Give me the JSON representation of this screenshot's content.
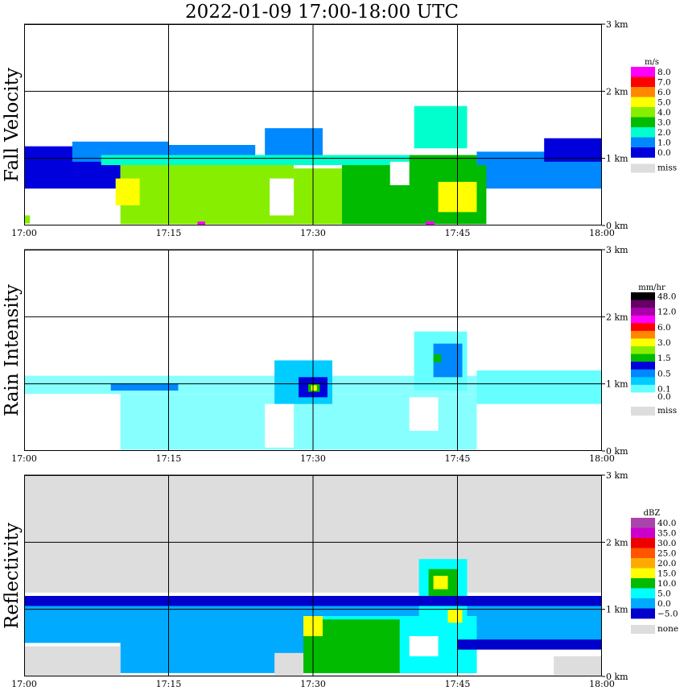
{
  "title": "2022-01-09   17:00-18:00 UTC",
  "chart_data": [
    {
      "type": "heatmap",
      "name": "fall-velocity",
      "title": "Fall Velocity",
      "x_ticks": [
        "17:00",
        "17:15",
        "17:30",
        "17:45",
        "18:00"
      ],
      "y_ticks": [
        "0 km",
        "1 km",
        "2 km",
        "3 km"
      ],
      "xlim": [
        0,
        60
      ],
      "ylim": [
        0,
        3.0
      ],
      "legend_unit": "m/s",
      "legend": [
        {
          "label": "8.0",
          "color": "#ff00ff"
        },
        {
          "label": "7.0",
          "color": "#ff0000"
        },
        {
          "label": "6.0",
          "color": "#ff8800"
        },
        {
          "label": "5.0",
          "color": "#ffff00"
        },
        {
          "label": "4.0",
          "color": "#88ee00"
        },
        {
          "label": "3.0",
          "color": "#00bb00"
        },
        {
          "label": "2.0",
          "color": "#00ffcc"
        },
        {
          "label": "1.0",
          "color": "#0088ff"
        },
        {
          "label": "0.0",
          "color": "#0000dd"
        }
      ],
      "missing": {
        "label": "miss",
        "color": "#dddddd"
      },
      "regions": [
        {
          "color": "#0000dd",
          "x0": 0,
          "x1": 10,
          "y0": 0.55,
          "y1": 1.18
        },
        {
          "color": "#0088ff",
          "x0": 5,
          "x1": 15,
          "y0": 0.95,
          "y1": 1.25
        },
        {
          "color": "#0088ff",
          "x0": 12,
          "x1": 24,
          "y0": 0.9,
          "y1": 1.2
        },
        {
          "color": "#0088ff",
          "x0": 25,
          "x1": 31,
          "y0": 1.0,
          "y1": 1.45
        },
        {
          "color": "#0088ff",
          "x0": 47,
          "x1": 60,
          "y0": 0.55,
          "y1": 1.1
        },
        {
          "color": "#0000dd",
          "x0": 54,
          "x1": 60,
          "y0": 0.95,
          "y1": 1.3
        },
        {
          "color": "#00ffcc",
          "x0": 8,
          "x1": 40,
          "y0": 0.9,
          "y1": 1.05
        },
        {
          "color": "#00ffcc",
          "x0": 40.5,
          "x1": 46,
          "y0": 1.15,
          "y1": 1.78
        },
        {
          "color": "#88ee00",
          "x0": 10,
          "x1": 28,
          "y0": 0.02,
          "y1": 0.9
        },
        {
          "color": "#88ee00",
          "x0": 28,
          "x1": 33,
          "y0": 0.02,
          "y1": 0.85
        },
        {
          "color": "#00bb00",
          "x0": 33,
          "x1": 48,
          "y0": 0.02,
          "y1": 0.9
        },
        {
          "color": "#00bb00",
          "x0": 40,
          "x1": 47,
          "y0": 0.8,
          "y1": 1.05
        },
        {
          "color": "#ffff00",
          "x0": 9.5,
          "x1": 12,
          "y0": 0.3,
          "y1": 0.7
        },
        {
          "color": "#ffff00",
          "x0": 43,
          "x1": 47,
          "y0": 0.2,
          "y1": 0.65
        },
        {
          "color": "#ffffff",
          "x0": 25.5,
          "x1": 28,
          "y0": 0.15,
          "y1": 0.7
        },
        {
          "color": "#ffffff",
          "x0": 38,
          "x1": 40,
          "y0": 0.6,
          "y1": 0.95
        },
        {
          "color": "#ff00ff",
          "x0": 18,
          "x1": 18.8,
          "y0": 0.0,
          "y1": 0.06
        },
        {
          "color": "#ff00ff",
          "x0": 41.7,
          "x1": 42.6,
          "y0": 0.0,
          "y1": 0.06
        },
        {
          "color": "#88ee00",
          "x0": 0,
          "x1": 0.6,
          "y0": 0.03,
          "y1": 0.15
        }
      ]
    },
    {
      "type": "heatmap",
      "name": "rain-intensity",
      "title": "Rain Intensity",
      "x_ticks": [
        "17:00",
        "17:15",
        "17:30",
        "17:45",
        "18:00"
      ],
      "y_ticks": [
        "0 km",
        "1 km",
        "2 km",
        "3 km"
      ],
      "xlim": [
        0,
        60
      ],
      "ylim": [
        0,
        3.0
      ],
      "legend_unit": "mm/hr",
      "legend": [
        {
          "label": "48.0",
          "color": "#000000"
        },
        {
          "label": "",
          "color": "#660066"
        },
        {
          "label": "12.0",
          "color": "#aa00aa"
        },
        {
          "label": "",
          "color": "#ff00ff"
        },
        {
          "label": "6.0",
          "color": "#ff0000"
        },
        {
          "label": "",
          "color": "#ff8800"
        },
        {
          "label": "3.0",
          "color": "#ffff00"
        },
        {
          "label": "",
          "color": "#88ee00"
        },
        {
          "label": "1.5",
          "color": "#00bb00"
        },
        {
          "label": "",
          "color": "#0000dd"
        },
        {
          "label": "0.5",
          "color": "#0088ff"
        },
        {
          "label": "",
          "color": "#00ccff"
        },
        {
          "label": "0.1",
          "color": "#66ffff"
        },
        {
          "label": "0.0",
          "color": "#ffffff"
        }
      ],
      "missing": {
        "label": "miss",
        "color": "#dddddd"
      },
      "regions": [
        {
          "color": "#88ffff",
          "x0": 0,
          "x1": 60,
          "y0": 0.85,
          "y1": 1.12
        },
        {
          "color": "#88ffff",
          "x0": 10,
          "x1": 47,
          "y0": 0.02,
          "y1": 0.85
        },
        {
          "color": "#66ffff",
          "x0": 47,
          "x1": 60,
          "y0": 0.7,
          "y1": 1.2
        },
        {
          "color": "#66ffff",
          "x0": 40.5,
          "x1": 46,
          "y0": 0.9,
          "y1": 1.78
        },
        {
          "color": "#00ccff",
          "x0": 26,
          "x1": 32,
          "y0": 0.7,
          "y1": 1.35
        },
        {
          "color": "#0088ff",
          "x0": 9,
          "x1": 16,
          "y0": 0.9,
          "y1": 1.0
        },
        {
          "color": "#0088ff",
          "x0": 42.5,
          "x1": 45.5,
          "y0": 1.1,
          "y1": 1.6
        },
        {
          "color": "#0000dd",
          "x0": 28.5,
          "x1": 31.5,
          "y0": 0.8,
          "y1": 1.1
        },
        {
          "color": "#00bb00",
          "x0": 29.5,
          "x1": 30.7,
          "y0": 0.88,
          "y1": 1.0
        },
        {
          "color": "#ffff00",
          "x0": 29.8,
          "x1": 30.4,
          "y0": 0.9,
          "y1": 0.98
        },
        {
          "color": "#00bb00",
          "x0": 42.5,
          "x1": 43.3,
          "y0": 1.32,
          "y1": 1.44
        },
        {
          "color": "#ffffff",
          "x0": 25,
          "x1": 28,
          "y0": 0.05,
          "y1": 0.7
        },
        {
          "color": "#ffffff",
          "x0": 40,
          "x1": 43,
          "y0": 0.3,
          "y1": 0.8
        }
      ]
    },
    {
      "type": "heatmap",
      "name": "reflectivity",
      "title": "Reflectivity",
      "x_ticks": [
        "17:00",
        "17:15",
        "17:30",
        "17:45",
        "18:00"
      ],
      "y_ticks": [
        "0 km",
        "1 km",
        "2 km",
        "3 km"
      ],
      "xlim": [
        0,
        60
      ],
      "ylim": [
        0,
        3.0
      ],
      "legend_unit": "dBZ",
      "legend": [
        {
          "label": "40.0",
          "color": "#aa44aa"
        },
        {
          "label": "35.0",
          "color": "#cc00cc"
        },
        {
          "label": "30.0",
          "color": "#ee0000"
        },
        {
          "label": "25.0",
          "color": "#ff5500"
        },
        {
          "label": "20.0",
          "color": "#ffaa00"
        },
        {
          "label": "15.0",
          "color": "#ffff00"
        },
        {
          "label": "10.0",
          "color": "#00bb00"
        },
        {
          "label": "5.0",
          "color": "#00ffff"
        },
        {
          "label": "0.0",
          "color": "#00aaff"
        },
        {
          "label": "−5.0",
          "color": "#0000cc"
        }
      ],
      "missing": {
        "label": "none",
        "color": "#dddddd"
      },
      "regions": [
        {
          "color": "#dddddd",
          "x0": 0,
          "x1": 60,
          "y0": 0,
          "y1": 3.0
        },
        {
          "color": "#ffffff",
          "x0": 0,
          "x1": 60,
          "y0": 0.02,
          "y1": 1.25
        },
        {
          "color": "#00aaff",
          "x0": 0,
          "x1": 60,
          "y0": 0.5,
          "y1": 1.12
        },
        {
          "color": "#00aaff",
          "x0": 10,
          "x1": 47,
          "y0": 0.05,
          "y1": 1.05
        },
        {
          "color": "#00ffff",
          "x0": 30,
          "x1": 47,
          "y0": 0.05,
          "y1": 0.9
        },
        {
          "color": "#00ffff",
          "x0": 41,
          "x1": 46,
          "y0": 0.9,
          "y1": 1.75
        },
        {
          "color": "#00bb00",
          "x0": 29,
          "x1": 39,
          "y0": 0.05,
          "y1": 0.85
        },
        {
          "color": "#00bb00",
          "x0": 42,
          "x1": 45,
          "y0": 1.1,
          "y1": 1.6
        },
        {
          "color": "#ffff00",
          "x0": 29,
          "x1": 31,
          "y0": 0.6,
          "y1": 0.9
        },
        {
          "color": "#ffff00",
          "x0": 42.5,
          "x1": 44,
          "y0": 1.3,
          "y1": 1.5
        },
        {
          "color": "#ffff00",
          "x0": 44,
          "x1": 45.5,
          "y0": 0.8,
          "y1": 1.0
        },
        {
          "color": "#0000cc",
          "x0": 0,
          "x1": 60,
          "y0": 1.05,
          "y1": 1.2
        },
        {
          "color": "#0000cc",
          "x0": 45,
          "x1": 60,
          "y0": 0.4,
          "y1": 0.55
        },
        {
          "color": "#dddddd",
          "x0": 0,
          "x1": 10,
          "y0": 0.02,
          "y1": 0.45
        },
        {
          "color": "#dddddd",
          "x0": 26,
          "x1": 29,
          "y0": 0.02,
          "y1": 0.35
        },
        {
          "color": "#dddddd",
          "x0": 55,
          "x1": 60,
          "y0": 0.02,
          "y1": 0.3
        },
        {
          "color": "#ffffff",
          "x0": 40,
          "x1": 43,
          "y0": 0.3,
          "y1": 0.6
        }
      ]
    }
  ]
}
